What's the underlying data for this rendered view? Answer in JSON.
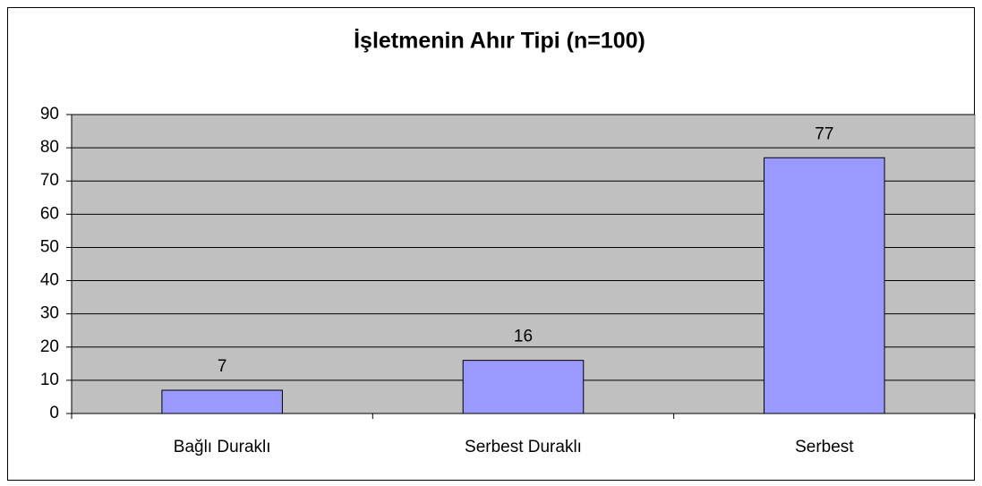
{
  "chart_data": {
    "type": "bar",
    "title": "İşletmenin Ahır Tipi (n=100)",
    "categories": [
      "Bağlı Duraklı",
      "Serbest Duraklı",
      "Serbest"
    ],
    "values": [
      7,
      16,
      77
    ],
    "color": "#9999ff",
    "ylim": [
      0,
      90
    ],
    "yticks": [
      0,
      10,
      20,
      30,
      40,
      50,
      60,
      70,
      80,
      90
    ],
    "grid": true
  }
}
